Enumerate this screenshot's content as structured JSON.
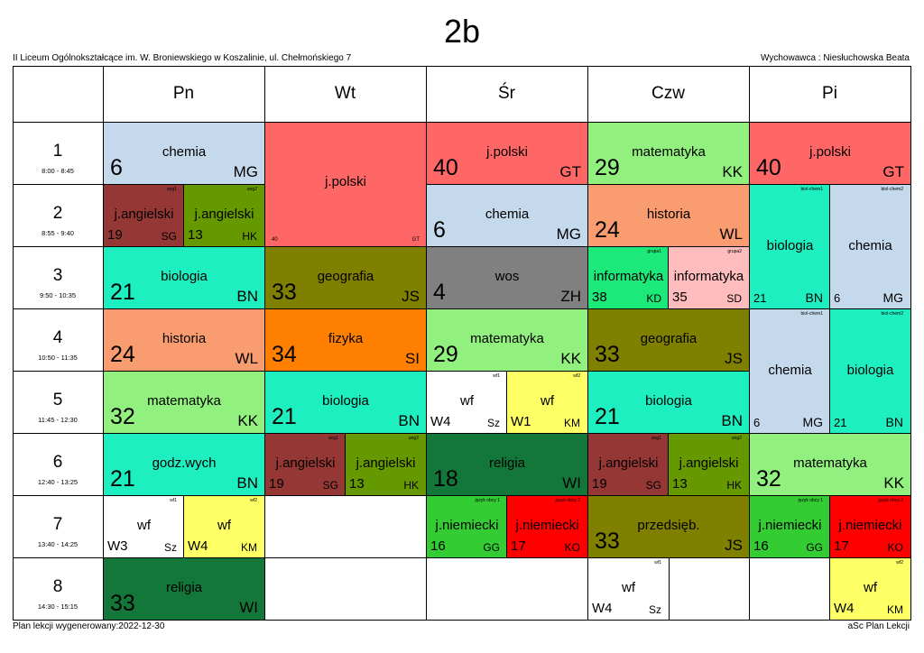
{
  "title": "2b",
  "school": "II Liceum Ogólnokształcące im. W. Broniewskiego w Koszalinie, ul. Chełmońskiego 7",
  "class_teacher": "Wychowawca : Niesłuchowska Beata",
  "periods": [
    {
      "number": "1",
      "time": "8:00 - 8:45"
    },
    {
      "number": "2",
      "time": "8:55 - 9:40"
    },
    {
      "number": "3",
      "time": "9:50 - 10:35"
    },
    {
      "number": "4",
      "time": "10:50 - 11:35"
    },
    {
      "number": "5",
      "time": "11:45 - 12:30"
    },
    {
      "number": "6",
      "time": "12:40 - 13:25"
    },
    {
      "number": "7",
      "time": "13:40 - 14:25"
    },
    {
      "number": "8",
      "time": "14:30 - 15:15"
    }
  ],
  "days": [
    {
      "name": "Pn",
      "lessons": [
        {
          "period": 1,
          "span": 1,
          "part": "full",
          "color": "#c5d9ec",
          "subject": "chemia",
          "room": "6",
          "teacher": "MG"
        },
        {
          "period": 2,
          "span": 1,
          "part": "left",
          "color": "#953735",
          "subject": "j.angielski",
          "room": "19",
          "teacher": "SG",
          "group": "ang1"
        },
        {
          "period": 2,
          "span": 1,
          "part": "right",
          "color": "#669900",
          "subject": "j.angielski",
          "room": "13",
          "teacher": "HK",
          "group": "ang2"
        },
        {
          "period": 3,
          "span": 1,
          "part": "full",
          "color": "#1eefc0",
          "subject": "biologia",
          "room": "21",
          "teacher": "BN"
        },
        {
          "period": 4,
          "span": 1,
          "part": "full",
          "color": "#f99c70",
          "subject": "historia",
          "room": "24",
          "teacher": "WL"
        },
        {
          "period": 5,
          "span": 1,
          "part": "full",
          "color": "#92f07e",
          "subject": "matematyka",
          "room": "32",
          "teacher": "KK"
        },
        {
          "period": 6,
          "span": 1,
          "part": "full",
          "color": "#1eefc0",
          "subject": "godz.wych",
          "room": "21",
          "teacher": "BN"
        },
        {
          "period": 7,
          "span": 1,
          "part": "left",
          "color": "#ffffff",
          "subject": "wf",
          "room": "W3",
          "teacher": "Sz",
          "group": "wf1"
        },
        {
          "period": 7,
          "span": 1,
          "part": "right",
          "color": "#ffff66",
          "subject": "wf",
          "room": "W4",
          "teacher": "KM",
          "group": "wf2"
        },
        {
          "period": 8,
          "span": 1,
          "part": "full",
          "color": "#13773a",
          "subject": "religia",
          "room": "33",
          "teacher": "WI"
        }
      ]
    },
    {
      "name": "Wt",
      "lessons": [
        {
          "period": 1,
          "span": 2,
          "part": "full",
          "color": "#ff6666",
          "subject": "j.polski",
          "room": "40",
          "teacher": "GT"
        },
        {
          "period": 3,
          "span": 1,
          "part": "full",
          "color": "#808000",
          "subject": "geografia",
          "room": "33",
          "teacher": "JS"
        },
        {
          "period": 4,
          "span": 1,
          "part": "full",
          "color": "#ff8000",
          "subject": "fizyka",
          "room": "34",
          "teacher": "SI"
        },
        {
          "period": 5,
          "span": 1,
          "part": "full",
          "color": "#1eefc0",
          "subject": "biologia",
          "room": "21",
          "teacher": "BN"
        },
        {
          "period": 6,
          "span": 1,
          "part": "left",
          "color": "#953735",
          "subject": "j.angielski",
          "room": "19",
          "teacher": "SG",
          "group": "ang1"
        },
        {
          "period": 6,
          "span": 1,
          "part": "right",
          "color": "#669900",
          "subject": "j.angielski",
          "room": "13",
          "teacher": "HK",
          "group": "ang2"
        }
      ]
    },
    {
      "name": "Śr",
      "lessons": [
        {
          "period": 1,
          "span": 1,
          "part": "full",
          "color": "#ff6666",
          "subject": "j.polski",
          "room": "40",
          "teacher": "GT"
        },
        {
          "period": 2,
          "span": 1,
          "part": "full",
          "color": "#c5d9ec",
          "subject": "chemia",
          "room": "6",
          "teacher": "MG"
        },
        {
          "period": 3,
          "span": 1,
          "part": "full",
          "color": "#808080",
          "subject": "wos",
          "room": "4",
          "teacher": "ZH"
        },
        {
          "period": 4,
          "span": 1,
          "part": "full",
          "color": "#92f07e",
          "subject": "matematyka",
          "room": "29",
          "teacher": "KK"
        },
        {
          "period": 5,
          "span": 1,
          "part": "left",
          "color": "#ffffff",
          "subject": "wf",
          "room": "W4",
          "teacher": "Sz",
          "group": "wf1"
        },
        {
          "period": 5,
          "span": 1,
          "part": "right",
          "color": "#ffff66",
          "subject": "wf",
          "room": "W1",
          "teacher": "KM",
          "group": "wf2"
        },
        {
          "period": 6,
          "span": 1,
          "part": "full",
          "color": "#13773a",
          "subject": "religia",
          "room": "18",
          "teacher": "WI"
        },
        {
          "period": 7,
          "span": 1,
          "part": "left",
          "color": "#33cc33",
          "subject": "j.niemiecki",
          "room": "16",
          "teacher": "GG",
          "group": "język obcy 1"
        },
        {
          "period": 7,
          "span": 1,
          "part": "right",
          "color": "#ff0000",
          "subject": "j.niemiecki",
          "room": "17",
          "teacher": "KO",
          "group": "język obcy 2"
        }
      ]
    },
    {
      "name": "Czw",
      "lessons": [
        {
          "period": 1,
          "span": 1,
          "part": "full",
          "color": "#92f07e",
          "subject": "matematyka",
          "room": "29",
          "teacher": "KK"
        },
        {
          "period": 2,
          "span": 1,
          "part": "full",
          "color": "#f99c70",
          "subject": "historia",
          "room": "24",
          "teacher": "WL"
        },
        {
          "period": 3,
          "span": 1,
          "part": "left",
          "color": "#1de87a",
          "subject": "informatyka",
          "room": "38",
          "teacher": "KD",
          "group": "grupa1"
        },
        {
          "period": 3,
          "span": 1,
          "part": "right",
          "color": "#ffbcbc",
          "subject": "informatyka",
          "room": "35",
          "teacher": "SD",
          "group": "grupa2"
        },
        {
          "period": 4,
          "span": 1,
          "part": "full",
          "color": "#808000",
          "subject": "geografia",
          "room": "33",
          "teacher": "JS"
        },
        {
          "period": 5,
          "span": 1,
          "part": "full",
          "color": "#1eefc0",
          "subject": "biologia",
          "room": "21",
          "teacher": "BN"
        },
        {
          "period": 6,
          "span": 1,
          "part": "left",
          "color": "#953735",
          "subject": "j.angielski",
          "room": "19",
          "teacher": "SG",
          "group": "ang1"
        },
        {
          "period": 6,
          "span": 1,
          "part": "right",
          "color": "#669900",
          "subject": "j.angielski",
          "room": "13",
          "teacher": "HK",
          "group": "ang2"
        },
        {
          "period": 7,
          "span": 1,
          "part": "full",
          "color": "#808000",
          "subject": "przedsięb.",
          "room": "33",
          "teacher": "JS"
        },
        {
          "period": 8,
          "span": 1,
          "part": "left",
          "color": "#ffffff",
          "subject": "wf",
          "room": "W4",
          "teacher": "Sz",
          "group": "wf1"
        }
      ]
    },
    {
      "name": "Pi",
      "lessons": [
        {
          "period": 1,
          "span": 1,
          "part": "full",
          "color": "#ff6666",
          "subject": "j.polski",
          "room": "40",
          "teacher": "GT"
        },
        {
          "period": 2,
          "span": 2,
          "part": "left",
          "color": "#1eefc0",
          "subject": "biologia",
          "room": "21",
          "teacher": "BN",
          "group": "biol-chem1"
        },
        {
          "period": 2,
          "span": 2,
          "part": "right",
          "color": "#c5d9ec",
          "subject": "chemia",
          "room": "6",
          "teacher": "MG",
          "group": "biol-chem2"
        },
        {
          "period": 4,
          "span": 2,
          "part": "left",
          "color": "#c5d9ec",
          "subject": "chemia",
          "room": "6",
          "teacher": "MG",
          "group": "biol-chem1"
        },
        {
          "period": 4,
          "span": 2,
          "part": "right",
          "color": "#1eefc0",
          "subject": "biologia",
          "room": "21",
          "teacher": "BN",
          "group": "biol-chem2"
        },
        {
          "period": 6,
          "span": 1,
          "part": "full",
          "color": "#92f07e",
          "subject": "matematyka",
          "room": "32",
          "teacher": "KK"
        },
        {
          "period": 7,
          "span": 1,
          "part": "left",
          "color": "#33cc33",
          "subject": "j.niemiecki",
          "room": "16",
          "teacher": "GG",
          "group": "język obcy 1"
        },
        {
          "period": 7,
          "span": 1,
          "part": "right",
          "color": "#ff0000",
          "subject": "j.niemiecki",
          "room": "17",
          "teacher": "KO",
          "group": "język obcy 2"
        },
        {
          "period": 8,
          "span": 1,
          "part": "right",
          "color": "#ffff66",
          "subject": "wf",
          "room": "W4",
          "teacher": "KM",
          "group": "wf2"
        }
      ]
    }
  ],
  "footer": {
    "generated": "Plan lekcji wygenerowany:2022-12-30",
    "app": "aSc Plan Lekcji"
  }
}
